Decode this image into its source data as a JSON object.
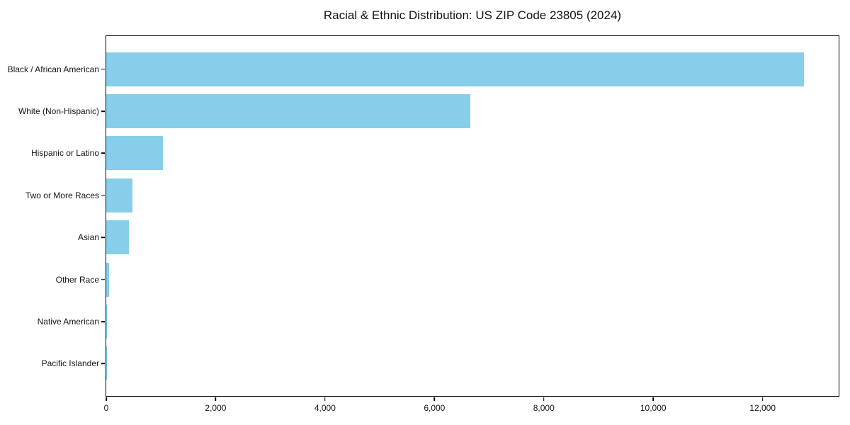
{
  "chart_data": {
    "type": "bar",
    "orientation": "horizontal",
    "title": "Racial & Ethnic Distribution: US ZIP Code 23805 (2024)",
    "xlabel": "",
    "ylabel": "",
    "categories": [
      "Black / African American",
      "White (Non-Hispanic)",
      "Hispanic or Latino",
      "Two or More Races",
      "Asian",
      "Other Race",
      "Native American",
      "Pacific Islander"
    ],
    "values": [
      12750,
      6660,
      1040,
      480,
      410,
      50,
      15,
      4
    ],
    "xlim": [
      0,
      13390
    ],
    "x_ticks": [
      0,
      2000,
      4000,
      6000,
      8000,
      10000,
      12000
    ],
    "x_tick_labels": [
      "0",
      "2,000",
      "4,000",
      "6,000",
      "8,000",
      "10,000",
      "12,000"
    ],
    "bar_color": "#87CEEB",
    "grid": false,
    "legend_position": "none"
  }
}
